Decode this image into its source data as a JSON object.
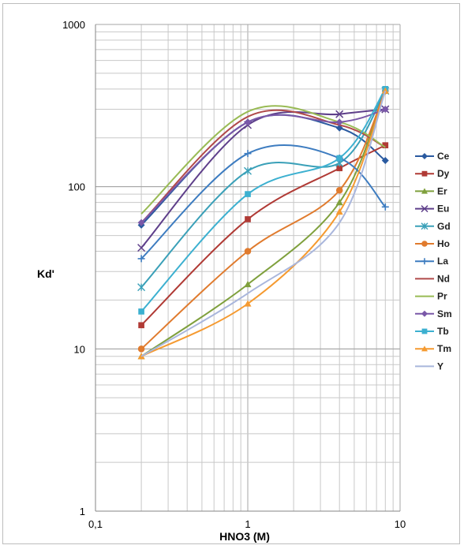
{
  "chart_data": {
    "type": "line",
    "title": "",
    "xlabel": "HNO3 (M)",
    "ylabel": "Kd'",
    "x_scale": "log",
    "y_scale": "log",
    "xlim": [
      0.1,
      10
    ],
    "ylim": [
      1,
      1000
    ],
    "x_tick_labels": [
      "0,1",
      "1",
      "10"
    ],
    "y_tick_labels": [
      "1",
      "10",
      "100",
      "1000"
    ],
    "grid": true,
    "legend_position": "right",
    "x": [
      0.2,
      1,
      4,
      8
    ],
    "series": [
      {
        "name": "Ce",
        "color": "#2a5aa0",
        "marker": "diamond",
        "values": [
          58,
          250,
          230,
          145
        ]
      },
      {
        "name": "Dy",
        "color": "#b03a35",
        "marker": "square",
        "values": [
          14,
          63,
          130,
          180
        ]
      },
      {
        "name": "Er",
        "color": "#7fa03d",
        "marker": "triangle",
        "values": [
          9,
          25,
          80,
          390
        ]
      },
      {
        "name": "Eu",
        "color": "#5e3f8a",
        "marker": "x",
        "values": [
          42,
          240,
          280,
          300
        ]
      },
      {
        "name": "Gd",
        "color": "#3aa0b8",
        "marker": "star",
        "values": [
          24,
          125,
          140,
          390
        ]
      },
      {
        "name": "Ho",
        "color": "#e07b2e",
        "marker": "circle",
        "values": [
          10,
          40,
          95,
          390
        ]
      },
      {
        "name": "La",
        "color": "#3d7cc0",
        "marker": "plus",
        "values": [
          36,
          160,
          150,
          75
        ]
      },
      {
        "name": "Nd",
        "color": "#b04a4a",
        "marker": "none",
        "values": [
          60,
          270,
          240,
          175
        ]
      },
      {
        "name": "Pr",
        "color": "#99bb55",
        "marker": "none",
        "values": [
          68,
          290,
          250,
          175
        ]
      },
      {
        "name": "Sm",
        "color": "#7a58a8",
        "marker": "diamond",
        "values": [
          60,
          250,
          250,
          300
        ]
      },
      {
        "name": "Tb",
        "color": "#3cb0d0",
        "marker": "square",
        "values": [
          17,
          90,
          150,
          400
        ]
      },
      {
        "name": "Tm",
        "color": "#f59a30",
        "marker": "triangle",
        "values": [
          9,
          19,
          70,
          390
        ]
      },
      {
        "name": "Y",
        "color": "#a9b6dc",
        "marker": "none",
        "values": [
          9,
          22,
          60,
          390
        ]
      }
    ]
  }
}
